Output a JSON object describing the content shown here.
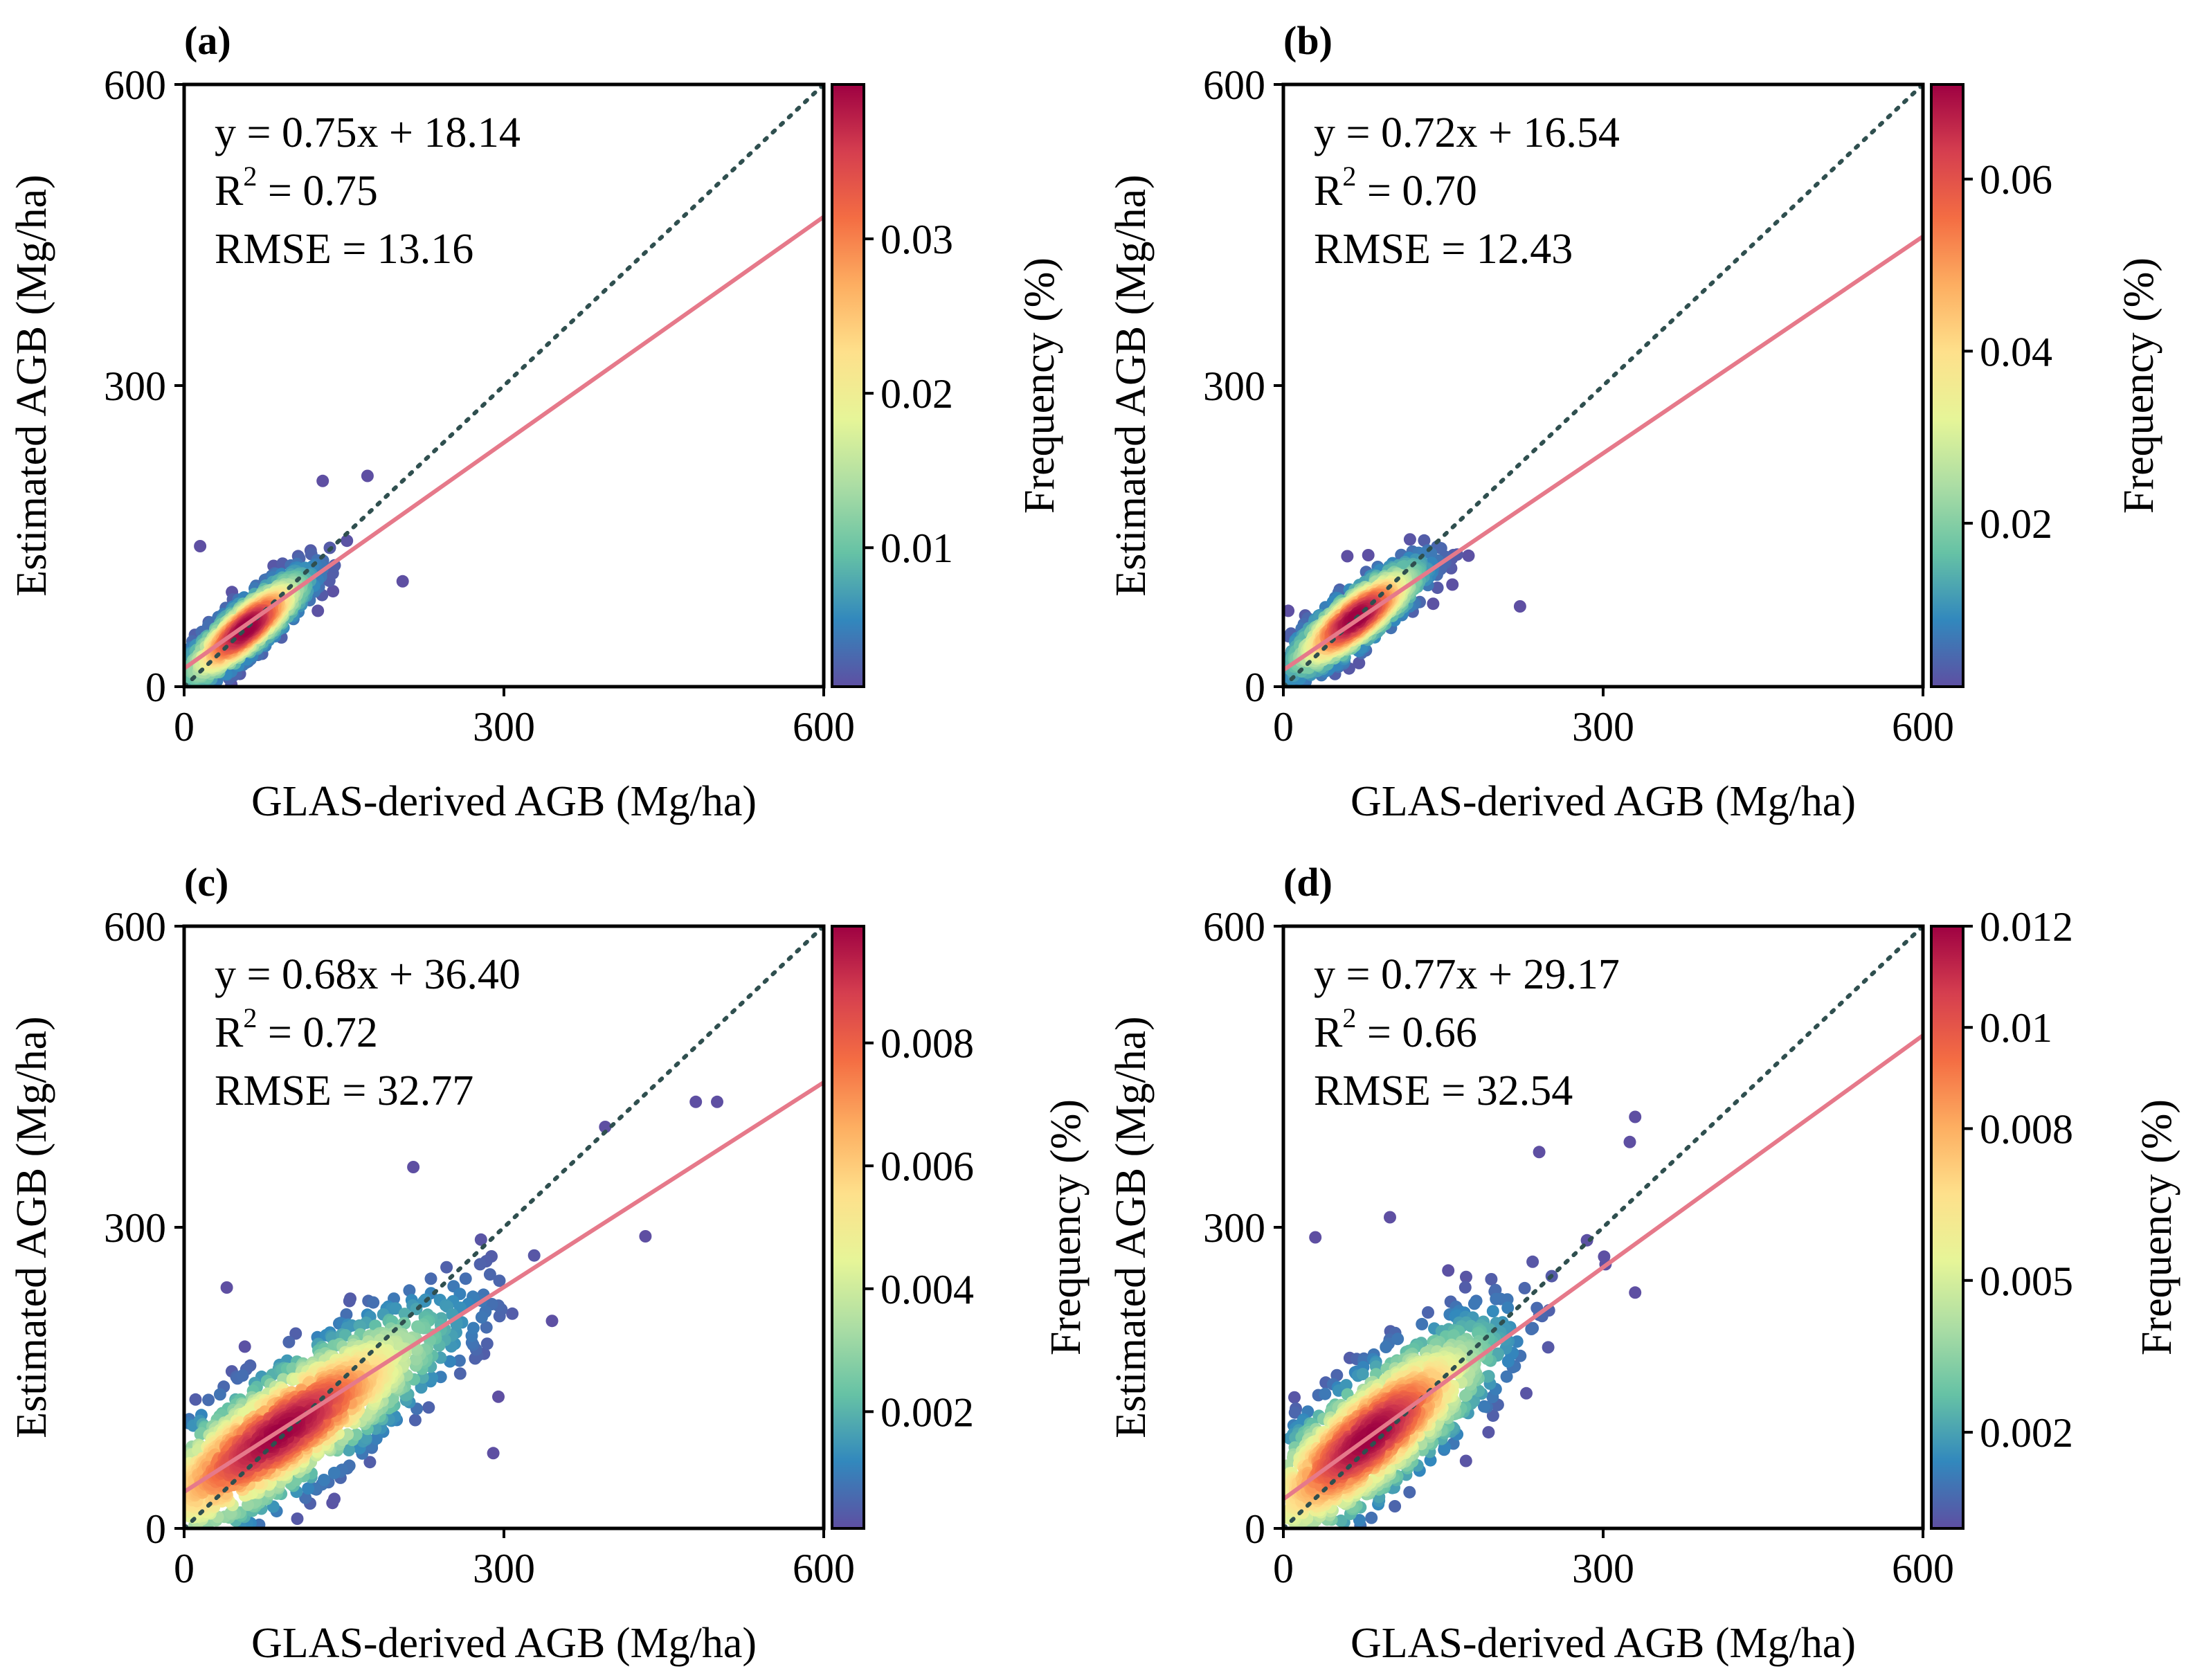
{
  "panels": [
    {
      "label": "(a)",
      "xlabel": "GLAS-derived AGB (Mg/ha)",
      "ylabel": "Estimated AGB (Mg/ha)",
      "xticks": [
        "0",
        "300",
        "600"
      ],
      "yticks": [
        "0",
        "300",
        "600"
      ],
      "equation": "y = 0.75x + 18.14",
      "r2_prefix": "R",
      "r2_sup": "2",
      "r2_value": " = 0.75",
      "rmse": "RMSE = 13.16",
      "colorbar_label": "Frequency (%)",
      "colorbar_ticks": [
        "0.01",
        "0.02",
        "0.03"
      ]
    },
    {
      "label": "(b)",
      "xlabel": "GLAS-derived AGB (Mg/ha)",
      "ylabel": "Estimated AGB (Mg/ha)",
      "xticks": [
        "0",
        "300",
        "600"
      ],
      "yticks": [
        "0",
        "300",
        "600"
      ],
      "equation": "y = 0.72x + 16.54",
      "r2_prefix": "R",
      "r2_sup": "2",
      "r2_value": " = 0.70",
      "rmse": "RMSE = 12.43",
      "colorbar_label": "Frequency (%)",
      "colorbar_ticks": [
        "0.02",
        "0.04",
        "0.06"
      ]
    },
    {
      "label": "(c)",
      "xlabel": "GLAS-derived AGB (Mg/ha)",
      "ylabel": "Estimated AGB (Mg/ha)",
      "xticks": [
        "0",
        "300",
        "600"
      ],
      "yticks": [
        "0",
        "300",
        "600"
      ],
      "equation": "y = 0.68x + 36.40",
      "r2_prefix": "R",
      "r2_sup": "2",
      "r2_value": " = 0.72",
      "rmse": "RMSE = 32.77",
      "colorbar_label": "Frequency (%)",
      "colorbar_ticks": [
        "0.002",
        "0.004",
        "0.006",
        "0.008"
      ]
    },
    {
      "label": "(d)",
      "xlabel": "GLAS-derived AGB (Mg/ha)",
      "ylabel": "Estimated AGB (Mg/ha)",
      "xticks": [
        "0",
        "300",
        "600"
      ],
      "yticks": [
        "0",
        "300",
        "600"
      ],
      "equation": "y = 0.77x + 29.17",
      "r2_prefix": "R",
      "r2_sup": "2",
      "r2_value": " = 0.66",
      "rmse": "RMSE = 32.54",
      "colorbar_label": "Frequency (%)",
      "colorbar_ticks": [
        "0.002",
        "0.005",
        "0.008",
        "0.01",
        "0.012"
      ]
    }
  ],
  "colors": {
    "fit_line": "#e6798a",
    "one_to_one": "#2f4f4f",
    "colormap": [
      "#5e4fa2",
      "#3288bd",
      "#66c2a5",
      "#abdda4",
      "#e6f598",
      "#fee08b",
      "#fdae61",
      "#f46d43",
      "#d53e4f",
      "#9e0142"
    ]
  },
  "chart_data": [
    {
      "type": "scatter",
      "title": "(a)",
      "xlabel": "GLAS-derived AGB (Mg/ha)",
      "ylabel": "Estimated AGB (Mg/ha)",
      "xlim": [
        0,
        600
      ],
      "ylim": [
        0,
        600
      ],
      "fit": {
        "slope": 0.75,
        "intercept": 18.14
      },
      "one_to_one": true,
      "r2": 0.75,
      "rmse": 13.16,
      "density": {
        "cx": 58,
        "cy": 58,
        "sx": 30,
        "sy": 28,
        "rho": 0.86,
        "n": 1300,
        "xmax": 205,
        "outliers": [
          [
            205,
            105
          ],
          [
            130,
            205
          ],
          [
            172,
            210
          ],
          [
            15,
            140
          ]
        ]
      },
      "colorbar": {
        "label": "Frequency (%)",
        "min": 0.001,
        "max": 0.04,
        "ticks": [
          0.01,
          0.02,
          0.03
        ]
      }
    },
    {
      "type": "scatter",
      "title": "(b)",
      "xlabel": "GLAS-derived AGB (Mg/ha)",
      "ylabel": "Estimated AGB (Mg/ha)",
      "xlim": [
        0,
        600
      ],
      "ylim": [
        0,
        600
      ],
      "fit": {
        "slope": 0.72,
        "intercept": 16.54
      },
      "one_to_one": true,
      "r2": 0.7,
      "rmse": 12.43,
      "density": {
        "cx": 68,
        "cy": 68,
        "sx": 32,
        "sy": 28,
        "rho": 0.84,
        "n": 1200,
        "xmax": 185,
        "outliers": [
          [
            222,
            80
          ],
          [
            60,
            130
          ]
        ]
      },
      "colorbar": {
        "label": "Frequency (%)",
        "min": 0.001,
        "max": 0.071,
        "ticks": [
          0.02,
          0.04,
          0.06
        ]
      }
    },
    {
      "type": "scatter",
      "title": "(c)",
      "xlabel": "GLAS-derived AGB (Mg/ha)",
      "ylabel": "Estimated AGB (Mg/ha)",
      "xlim": [
        0,
        600
      ],
      "ylim": [
        0,
        600
      ],
      "fit": {
        "slope": 0.68,
        "intercept": 36.4
      },
      "one_to_one": true,
      "r2": 0.72,
      "rmse": 32.77,
      "density": {
        "cx": 90,
        "cy": 95,
        "sx": 80,
        "sy": 62,
        "rho": 0.85,
        "n": 1700,
        "xmax": 500,
        "outliers": [
          [
            480,
            425
          ],
          [
            500,
            425
          ],
          [
            215,
            360
          ],
          [
            290,
            75
          ],
          [
            40,
            240
          ],
          [
            395,
            400
          ]
        ]
      },
      "colorbar": {
        "label": "Frequency (%)",
        "min": 0.0001,
        "max": 0.0099,
        "ticks": [
          0.002,
          0.004,
          0.006,
          0.008
        ]
      }
    },
    {
      "type": "scatter",
      "title": "(d)",
      "xlabel": "GLAS-derived AGB (Mg/ha)",
      "ylabel": "Estimated AGB (Mg/ha)",
      "xlim": [
        0,
        600
      ],
      "ylim": [
        0,
        600
      ],
      "fit": {
        "slope": 0.77,
        "intercept": 29.17
      },
      "one_to_one": true,
      "r2": 0.66,
      "rmse": 32.54,
      "density": {
        "cx": 80,
        "cy": 90,
        "sx": 62,
        "sy": 58,
        "rho": 0.82,
        "n": 1600,
        "xmax": 345,
        "outliers": [
          [
            330,
            410
          ],
          [
            325,
            385
          ],
          [
            240,
            375
          ],
          [
            30,
            290
          ],
          [
            100,
            310
          ],
          [
            330,
            235
          ]
        ]
      },
      "colorbar": {
        "label": "Frequency (%)",
        "min": 0.0001,
        "max": 0.012,
        "ticks": [
          0.002,
          0.005,
          0.008,
          0.01,
          0.012
        ]
      }
    }
  ]
}
